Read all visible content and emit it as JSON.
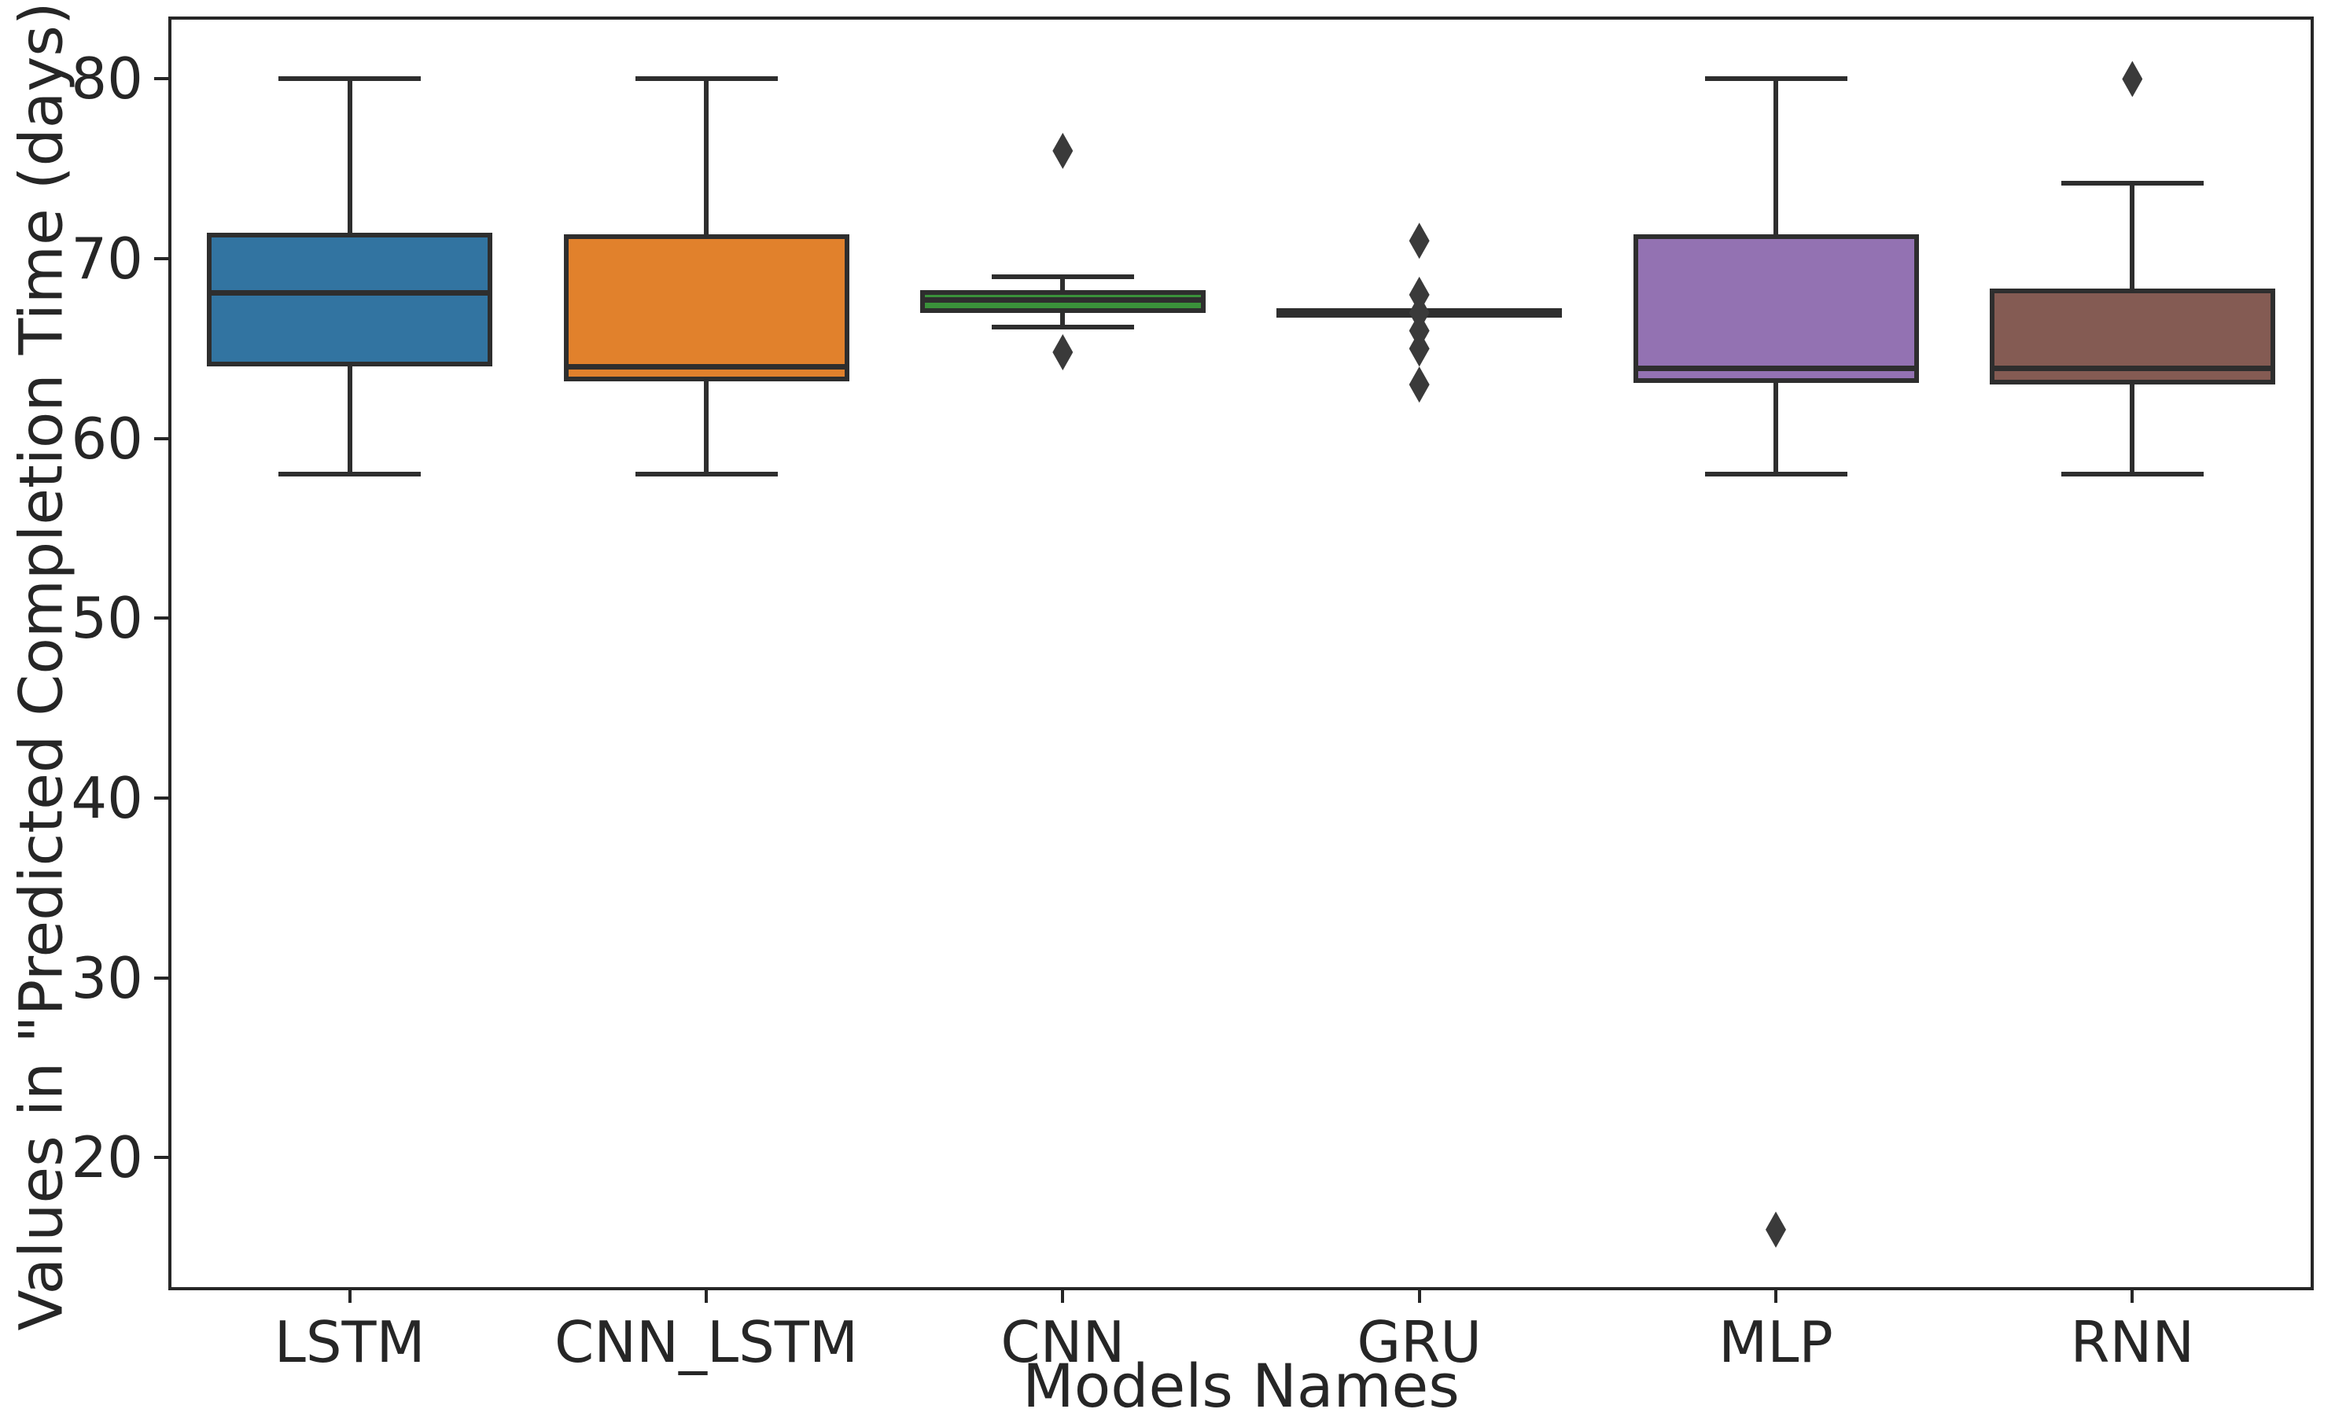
{
  "chart_data": {
    "type": "box",
    "title": "",
    "xlabel": "Models Names",
    "ylabel": "Values in \"Predicted Completion Time (days)\"",
    "ylim": [
      12.8,
      83.3
    ],
    "yticks": [
      20,
      30,
      40,
      50,
      60,
      70,
      80
    ],
    "categories": [
      "LSTM",
      "CNN_LSTM",
      "CNN",
      "GRU",
      "MLP",
      "RNN"
    ],
    "grid": false,
    "legend": "none",
    "marker": "thin-diamond",
    "line_color": "#2e2e2e",
    "series": [
      {
        "name": "LSTM",
        "color": "#3274a1",
        "whisker_low": 58,
        "q1": 64,
        "median": 68.1,
        "q3": 71.2,
        "whisker_high": 80,
        "outliers": []
      },
      {
        "name": "CNN_LSTM",
        "color": "#e1812c",
        "whisker_low": 58,
        "q1": 63.2,
        "median": 64,
        "q3": 71.1,
        "whisker_high": 80,
        "outliers": []
      },
      {
        "name": "CNN",
        "color": "#3a923a",
        "whisker_low": 66.2,
        "q1": 67,
        "median": 67.7,
        "q3": 68,
        "whisker_high": 69,
        "outliers": [
          76,
          64.8
        ]
      },
      {
        "name": "GRU",
        "color": "#c03d3e",
        "whisker_low": 67,
        "q1": 67,
        "median": 67,
        "q3": 67,
        "whisker_high": 67,
        "outliers": [
          71,
          68,
          67,
          66,
          65,
          63
        ]
      },
      {
        "name": "MLP",
        "color": "#9372b2",
        "whisker_low": 58,
        "q1": 63.1,
        "median": 63.9,
        "q3": 71.1,
        "whisker_high": 80,
        "outliers": [
          16
        ]
      },
      {
        "name": "RNN",
        "color": "#845b53",
        "whisker_low": 58,
        "q1": 63,
        "median": 63.9,
        "q3": 68.1,
        "whisker_high": 74.2,
        "outliers": [
          80
        ]
      }
    ]
  }
}
